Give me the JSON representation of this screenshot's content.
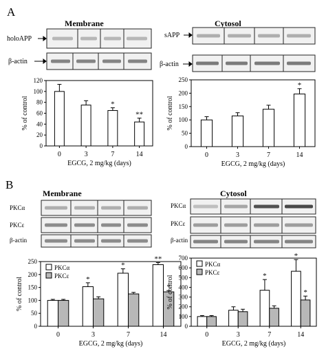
{
  "panel_a": {
    "letter": "A",
    "membrane": {
      "title": "Membrane",
      "blot_labels": [
        "holoAPP",
        "β-actin"
      ]
    },
    "cytosol": {
      "title": "Cytosol",
      "blot_labels": [
        "sAPP",
        "β-actin"
      ]
    }
  },
  "panel_b": {
    "letter": "B",
    "membrane": {
      "title": "Membrane",
      "blot_labels": [
        "PKCα",
        "PKCε",
        "β-actin"
      ]
    },
    "cytosol": {
      "title": "Cytosol",
      "blot_labels": [
        "PKCα",
        "PKCε",
        "β-actin"
      ]
    }
  },
  "colors": {
    "open_bar": "#ffffff",
    "gray_bar": "#b8b8b8",
    "ink": "#000000"
  },
  "chart_data": [
    {
      "id": "a-membrane",
      "type": "bar",
      "categories": [
        "0",
        "3",
        "7",
        "14"
      ],
      "series": [
        {
          "values": [
            100,
            75,
            65,
            44
          ],
          "errors": [
            13,
            8,
            5,
            7
          ],
          "marks": [
            "",
            "",
            "*",
            "**"
          ]
        }
      ],
      "xlabel": "EGCG, 2 mg/kg (days)",
      "ylabel": "% of control",
      "ylim": [
        0,
        120
      ],
      "yticks": [
        0,
        20,
        40,
        60,
        80,
        100,
        120
      ]
    },
    {
      "id": "a-cytosol",
      "type": "bar",
      "categories": [
        "0",
        "3",
        "7",
        "14"
      ],
      "series": [
        {
          "values": [
            100,
            115,
            140,
            197
          ],
          "errors": [
            12,
            12,
            15,
            20
          ],
          "marks": [
            "",
            "",
            "",
            "*"
          ]
        }
      ],
      "xlabel": "EGCG, 2 mg/kg (days)",
      "ylabel": "% of control",
      "ylim": [
        0,
        250
      ],
      "yticks": [
        0,
        50,
        100,
        150,
        200,
        250
      ]
    },
    {
      "id": "b-membrane",
      "type": "bar",
      "categories": [
        "0",
        "3",
        "7",
        "14"
      ],
      "series": [
        {
          "name": "PKCα",
          "values": [
            100,
            153,
            205,
            238
          ],
          "errors": [
            4,
            15,
            17,
            8
          ],
          "marks": [
            "",
            "*",
            "*",
            "**"
          ]
        },
        {
          "name": "PKCε",
          "values": [
            100,
            106,
            125,
            133
          ],
          "errors": [
            4,
            8,
            6,
            5
          ],
          "marks": [
            "",
            "",
            "",
            "*"
          ]
        }
      ],
      "xlabel": "EGCG, 2 mg/kg (days)",
      "ylabel": "% of control",
      "ylim": [
        0,
        250
      ],
      "yticks": [
        0,
        50,
        100,
        150,
        200,
        250
      ],
      "legend": "top-left"
    },
    {
      "id": "b-cytosol",
      "type": "bar",
      "categories": [
        "0",
        "3",
        "7",
        "14"
      ],
      "series": [
        {
          "name": "PKCα",
          "values": [
            100,
            165,
            370,
            565
          ],
          "errors": [
            10,
            35,
            110,
            120
          ],
          "marks": [
            "",
            "",
            "*",
            "*"
          ]
        },
        {
          "name": "PKCε",
          "values": [
            100,
            150,
            185,
            270
          ],
          "errors": [
            10,
            25,
            25,
            40
          ],
          "marks": [
            "",
            "",
            "",
            "*"
          ]
        }
      ],
      "xlabel": "EGCG, 2 mg/kg (days)",
      "ylabel": "% of control",
      "ylim": [
        0,
        700
      ],
      "yticks": [
        0,
        100,
        200,
        300,
        400,
        500,
        600,
        700
      ],
      "legend": "top-left"
    }
  ]
}
